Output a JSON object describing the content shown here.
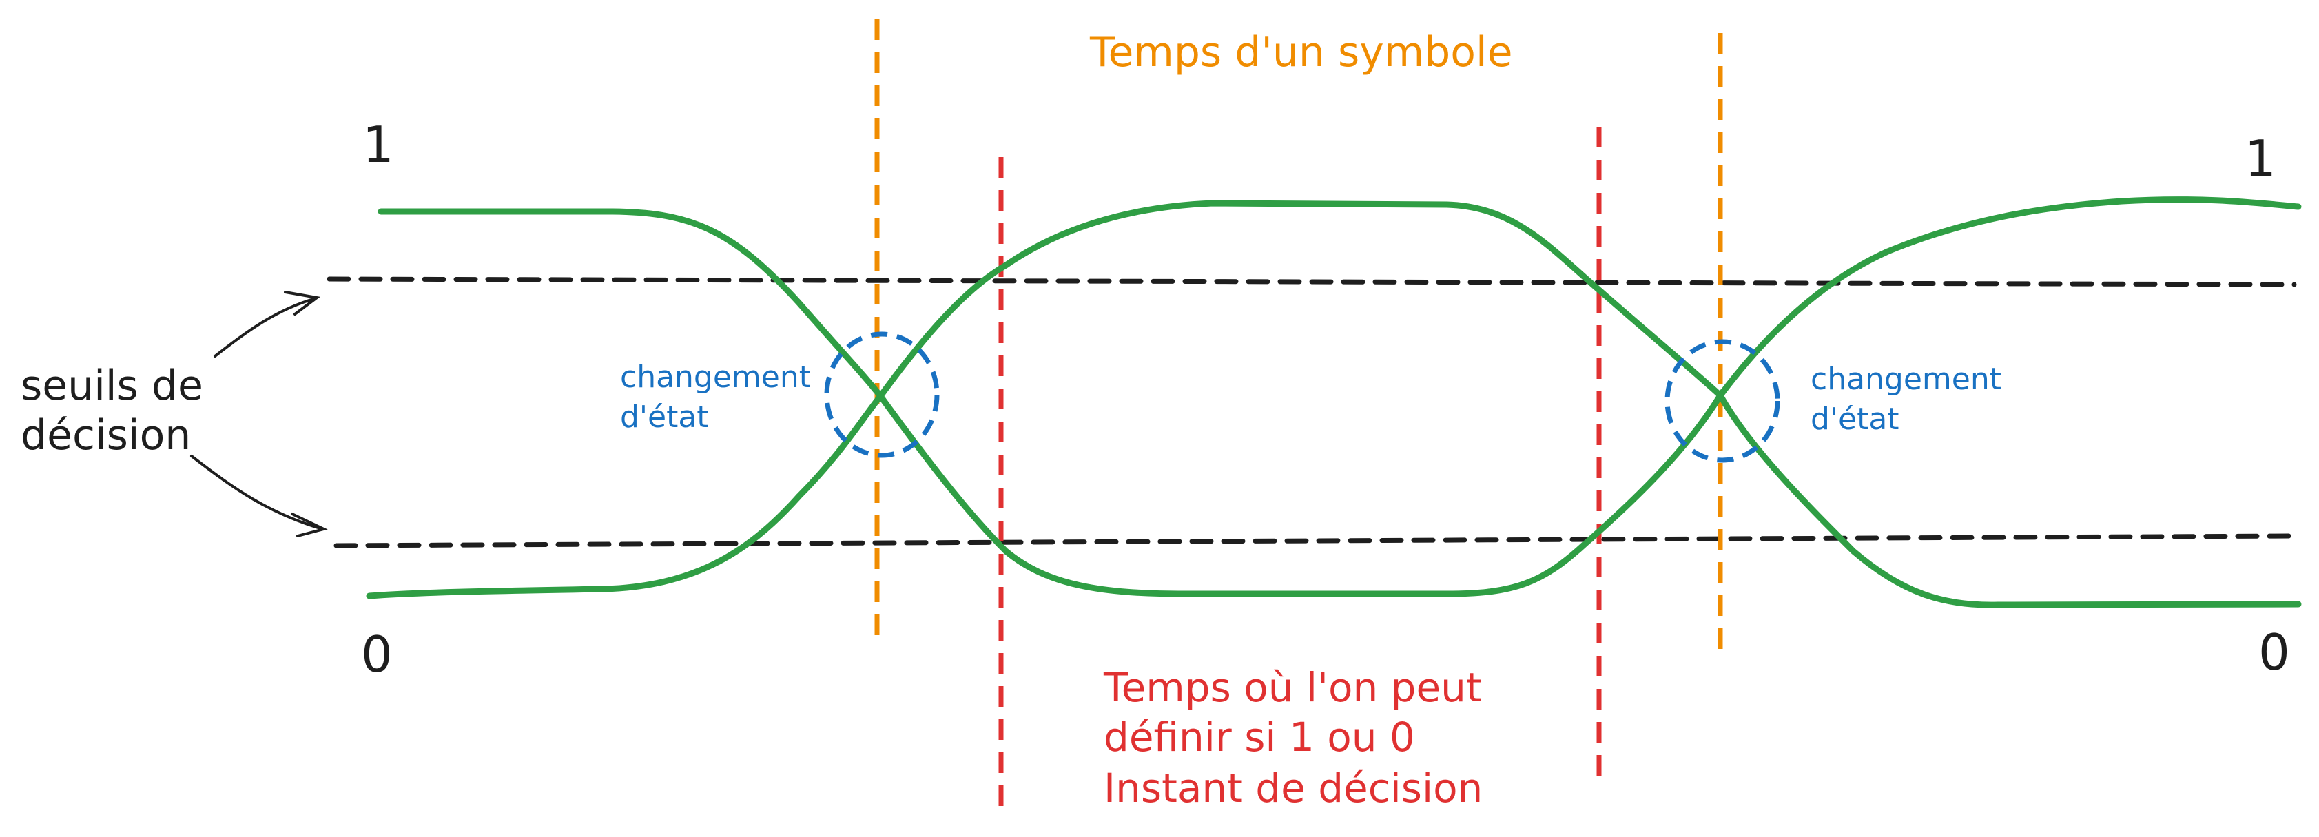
{
  "colors": {
    "signal": "#2f9e44",
    "threshold": "#1e1e1e",
    "symbol_time": "#f08c00",
    "decision_time": "#e03131",
    "state_change": "#1971c2",
    "background": "#ffffff"
  },
  "labels": {
    "symbol_time": "Temps d'un symbole",
    "level_high_left": "1",
    "level_high_right": "1",
    "level_low_left": "0",
    "level_low_right": "0",
    "thresholds_line1": "seuils de",
    "thresholds_line2": "décision",
    "state_change_left_line1": "changement",
    "state_change_left_line2": "d'état",
    "state_change_right_line1": "changement",
    "state_change_right_line2": "d'état",
    "decision_line1": "Temps où l'on peut",
    "decision_line2": "définir si 1 ou 0",
    "decision_line3": "Instant de décision"
  },
  "icons": {
    "arrow_upper": "arrow-icon",
    "arrow_lower": "arrow-icon",
    "circle_left": "dashed-circle-icon",
    "circle_right": "dashed-circle-icon"
  }
}
